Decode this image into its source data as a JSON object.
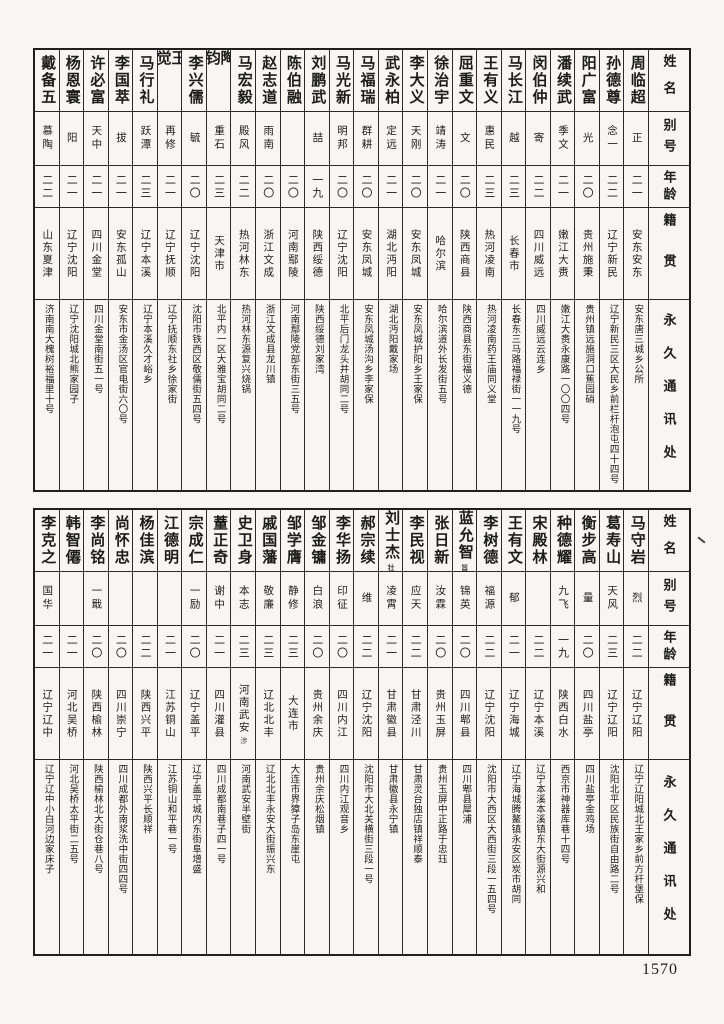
{
  "page_number": "1570",
  "header_labels": {
    "name": "姓名",
    "byname": "别号",
    "age": "年龄",
    "native": "籍贯",
    "address": "永久通讯处"
  },
  "tables": [
    {
      "people": [
        {
          "name": "周临超",
          "byname": "正",
          "age": "二一",
          "native": "安东安东",
          "address": "安东唐三城乡公所"
        },
        {
          "name": "孙德尊",
          "byname": "念一",
          "age": "二二",
          "native": "辽宁新民",
          "address": "辽宁新民三区大民乡前栏杆泡屯四十四号"
        },
        {
          "name": "阳广富",
          "byname": "光",
          "age": "二〇",
          "native": "贵州施秉",
          "address": "贵州镇远施洞口蕉园硝"
        },
        {
          "name": "潘续武",
          "byname": "季文",
          "age": "二一",
          "native": "嫩江大赉",
          "address": "嫩江大赉永康路一〇〇四号"
        },
        {
          "name": "闵伯仲",
          "byname": "寄",
          "age": "二二",
          "native": "四川威远",
          "address": "四川威远云连乡"
        },
        {
          "name": "马长江",
          "byname": "越",
          "age": "二三",
          "native": "长春市",
          "address": "长春东三马路福禄街一一九号"
        },
        {
          "name": "王有义",
          "byname": "惠民",
          "age": "二三",
          "native": "热河凌南",
          "address": "热河凌南药王庙同义堂"
        },
        {
          "name": "屈重文",
          "byname": "文",
          "age": "二〇",
          "native": "陕西商县",
          "address": "陕西商县东街福义德"
        },
        {
          "name": "徐治宇",
          "byname": "靖涛",
          "age": "二一",
          "native": "哈尔滨",
          "address": "哈尔滨道外长发街五号"
        },
        {
          "name": "李大义",
          "byname": "天刚",
          "age": "二〇",
          "native": "安东凤城",
          "address": "安东凤城护阳乡王家保"
        },
        {
          "name": "武永柏",
          "byname": "定远",
          "age": "二一",
          "native": "湖北沔阳",
          "address": "湖北沔阳戴家场"
        },
        {
          "name": "马福瑞",
          "byname": "群耕",
          "age": "二〇",
          "native": "安东凤城",
          "address": "安东凤城汤沟乡李家保"
        },
        {
          "name": "马光新",
          "byname": "明邦",
          "age": "二〇",
          "native": "辽宁沈阳",
          "address": "北平后门龙头井胡同二号"
        },
        {
          "name": "刘鹏武",
          "byname": "喆",
          "age": "一九",
          "native": "陕西绥德",
          "address": "陕西绥德刘家湾"
        },
        {
          "name": "陈伯融",
          "byname": "",
          "age": "二〇",
          "native": "河南鄢陵",
          "address": "河南鄢陵党部东街三五号"
        },
        {
          "name": "赵志道",
          "byname": "雨南",
          "age": "二〇",
          "native": "浙江文成",
          "address": "浙江文成县龙川镇"
        },
        {
          "name": "马宏毅",
          "byname": "殿风",
          "age": "二二",
          "native": "热河林东",
          "address": "热河林东源复兴烧锅"
        },
        {
          "name": "陶钧",
          "byname": "重石",
          "age": "二三",
          "native": "天津市",
          "address": "北平内一区大雅宝胡同二号"
        },
        {
          "name": "李兴儒",
          "byname": "毓",
          "age": "二〇",
          "native": "辽宁沈阳",
          "address": "沈阳市铁西区敬儒街五四号"
        },
        {
          "name": "王觉",
          "byname": "再修",
          "age": "二一",
          "native": "辽宁抚顺",
          "address": "辽宁抚顺东社乡徐家街"
        },
        {
          "name": "马行礼",
          "byname": "跃潭",
          "age": "二三",
          "native": "辽宁本溪",
          "address": "辽宁本溪久才峪乡"
        },
        {
          "name": "李国萃",
          "byname": "拔",
          "age": "二一",
          "native": "安东孤山",
          "address": "安东市金汤区官电街六〇号"
        },
        {
          "name": "许必富",
          "byname": "天中",
          "age": "二一",
          "native": "四川金堂",
          "address": "四川金堂南街五一号"
        },
        {
          "name": "杨恩寰",
          "byname": "阳",
          "age": "二一",
          "native": "辽宁沈阳",
          "address": "辽宁沈阳城北熊家园子"
        },
        {
          "name": "戴备五",
          "byname": "慕陶",
          "age": "二二",
          "native": "山东夏津",
          "address": "济南南大槐树裕福里十号"
        }
      ]
    },
    {
      "people": [
        {
          "name": "马守岩",
          "byname": "烈",
          "age": "二二",
          "native": "辽宁辽阳",
          "address": "辽宁辽阳城北王家乡前方杆堡保"
        },
        {
          "name": "葛寿山",
          "byname": "天风",
          "age": "二三",
          "native": "辽宁辽阳",
          "address": "沈阳北平区民族街自由路二号"
        },
        {
          "name": "衡步高",
          "byname": "量",
          "age": "二〇",
          "native": "四川盐亭",
          "address": "四川盐亭金鸡场"
        },
        {
          "name": "种德耀",
          "byname": "九飞",
          "age": "一九",
          "native": "陕西白水",
          "address": "西京市神器库巷十四号"
        },
        {
          "name": "宋殿林",
          "byname": "",
          "age": "二二",
          "native": "辽宁本溪",
          "address": "辽宁本溪本溪镇东大街源兴和"
        },
        {
          "name": "王有文",
          "byname": "郁",
          "age": "二一",
          "native": "辽宁海城",
          "address": "辽宁海城腾鳌镇永安区炭市胡同"
        },
        {
          "name": "李树德",
          "byname": "福源",
          "age": "二二",
          "native": "辽宁沈阳",
          "address": "沈阳市大西区大西街三段一五四号"
        },
        {
          "name": "蓝允智",
          "byname": "锦英",
          "age": "二〇",
          "native": "四川郫县",
          "address": "四川郫县犀浦",
          "name_note": "旨"
        },
        {
          "name": "张日新",
          "byname": "汝霖",
          "age": "二〇",
          "native": "贵州玉屏",
          "address": "贵州玉屏中正路于忠珏"
        },
        {
          "name": "李民视",
          "byname": "应天",
          "age": "二二",
          "native": "甘肃泾川",
          "address": "甘肃灵台独店镇祥顺泰"
        },
        {
          "name": "刘士杰",
          "byname": "凌霄",
          "age": "二一",
          "native": "甘肃徽县",
          "address": "甘肃徽县永宁镇",
          "name_note": "壮"
        },
        {
          "name": "郝宗续",
          "byname": "维",
          "age": "二二",
          "native": "辽宁沈阳",
          "address": "沈阳市大北关横街三段一号"
        },
        {
          "name": "李华扬",
          "byname": "印征",
          "age": "二〇",
          "native": "四川内江",
          "address": "四川内江观音乡"
        },
        {
          "name": "邹金镛",
          "byname": "白浪",
          "age": "二〇",
          "native": "贵州余庆",
          "address": "贵州余庆松烟镇"
        },
        {
          "name": "邹学膺",
          "byname": "静修",
          "age": "二三",
          "native": "大连市",
          "address": "大连市界獐子岛东崖屯"
        },
        {
          "name": "戚国藩",
          "byname": "敬廉",
          "age": "二三",
          "native": "辽北北丰",
          "address": "辽北北丰永安大街振兴东"
        },
        {
          "name": "史卫身",
          "byname": "本志",
          "age": "二三",
          "native": "河南武安",
          "address": "河南武安半壁街",
          "native_note": "涉"
        },
        {
          "name": "蕫正奇",
          "byname": "谢中",
          "age": "二一",
          "native": "四川灌县",
          "address": "四川成都南巷子四一号"
        },
        {
          "name": "宗成仁",
          "byname": "一励",
          "age": "二〇",
          "native": "辽宁盖平",
          "address": "辽宁盖平城内东街阜增盛"
        },
        {
          "name": "江德明",
          "byname": "",
          "age": "二一",
          "native": "江苏铜山",
          "address": "江苏铜山和平巷一号"
        },
        {
          "name": "杨佳滨",
          "byname": "",
          "age": "二二",
          "native": "陕西兴平",
          "address": "陕西兴平长顺祥"
        },
        {
          "name": "尚怀忠",
          "byname": "",
          "age": "二〇",
          "native": "四川崇宁",
          "address": "四川成都外南浆洗中街四四号"
        },
        {
          "name": "李尚铭",
          "byname": "一戢",
          "age": "二〇",
          "native": "陕西榆林",
          "address": "陕西榆林北大街仓巷八号"
        },
        {
          "name": "韩智僊",
          "byname": "",
          "age": "二一",
          "native": "河北吴桥",
          "address": "河北吴桥太平街二五号"
        },
        {
          "name": "李克之",
          "byname": "国华",
          "age": "二一",
          "native": "辽宁辽中",
          "address": "辽宁辽中小白河边家床子"
        }
      ]
    }
  ]
}
